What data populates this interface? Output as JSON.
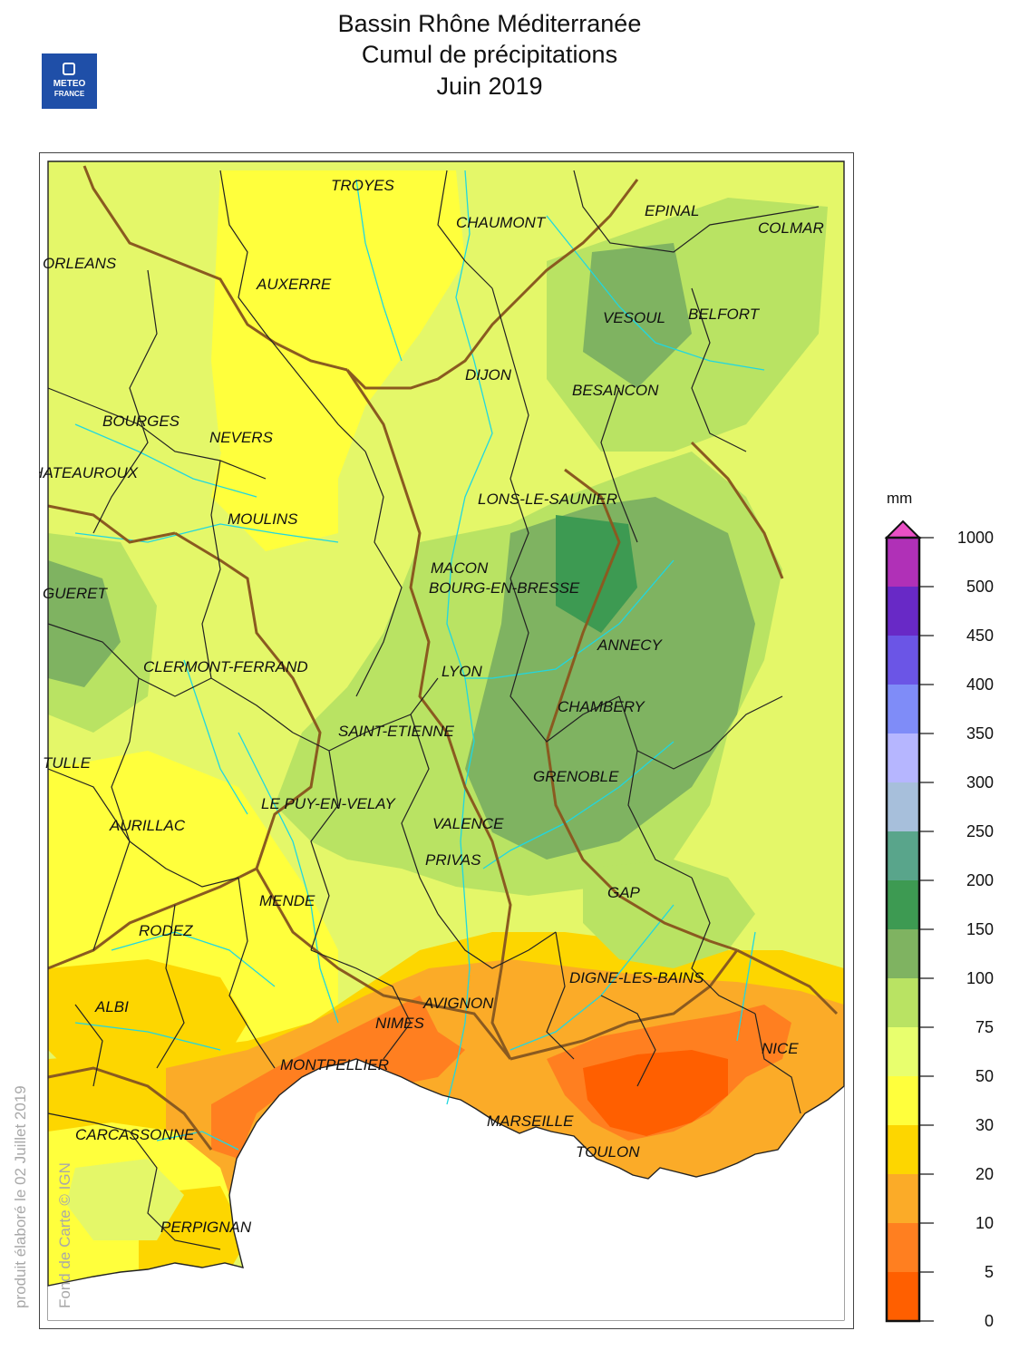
{
  "header": {
    "line1": "Bassin Rhône Méditerranée",
    "line2": "Cumul de précipitations",
    "line3": "Juin 2019"
  },
  "logo": {
    "line1": "METEO",
    "line2": "FRANCE",
    "icon": "meteo-france-logo"
  },
  "side_notes": {
    "produced": "produit élaboré le 02 Juillet 2019",
    "credit": "Fond de Carte © IGN"
  },
  "cities": [
    "TROYES",
    "CHAUMONT",
    "EPINAL",
    "COLMAR",
    "ORLEANS",
    "AUXERRE",
    "VESOUL",
    "BELFORT",
    "DIJON",
    "BESANCON",
    "BOURGES",
    "NEVERS",
    "CHATEAUROUX",
    "LONS-LE-SAUNIER",
    "MOULINS",
    "MACON",
    "BOURG-EN-BRESSE",
    "GUERET",
    "ANNECY",
    "CLERMONT-FERRAND",
    "LYON",
    "CHAMBERY",
    "SAINT-ETIENNE",
    "TULLE",
    "GRENOBLE",
    "LE PUY-EN-VELAY",
    "AURILLAC",
    "VALENCE",
    "PRIVAS",
    "GAP",
    "MENDE",
    "RODEZ",
    "DIGNE-LES-BAINS",
    "ALBI",
    "AVIGNON",
    "NIMES",
    "NICE",
    "MONTPELLIER",
    "CARCASSONNE",
    "MARSEILLE",
    "TOULON",
    "PERPIGNAN"
  ],
  "legend": {
    "unit": "mm",
    "labels": [
      "1000",
      "500",
      "450",
      "400",
      "350",
      "300",
      "250",
      "200",
      "150",
      "100",
      "75",
      "50",
      "30",
      "20",
      "10",
      "5",
      "0"
    ],
    "colors": [
      "#ff5f00",
      "#ff7f20",
      "#fbab28",
      "#fdd600",
      "#ffff3c",
      "#e8ff6e",
      "#b9e363",
      "#7fb361",
      "#3d9a52",
      "#59a58b",
      "#a7bfdb",
      "#b6b6ff",
      "#7f8cf8",
      "#6b55e6",
      "#6829c6",
      "#b030b7"
    ],
    "overflow_color": "#e950c5"
  }
}
